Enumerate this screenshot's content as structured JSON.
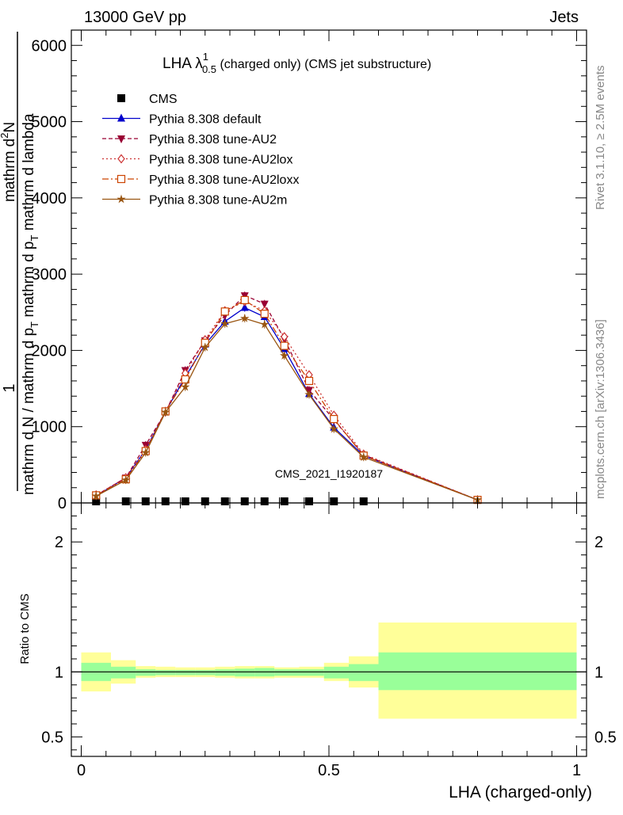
{
  "header": {
    "left": "13000 GeV pp",
    "right": "Jets"
  },
  "plot_title": {
    "main": "LHA λ",
    "sup": "1",
    "sub": "0.5",
    "rest": " (charged only) (CMS jet substructure)"
  },
  "side": {
    "rivet": "Rivet 3.1.10, ≥ 2.5M events",
    "mcplots": "mcplots.cern.ch [arXiv:1306.3436]"
  },
  "watermark": "CMS_2021_I1920187",
  "ylabel_main": {
    "one": "1",
    "numerator": "mathrm d",
    "numerator_sup": "2",
    "numerator_rest": "N",
    "den_main": "mathrm d N / mathrm d p",
    "den_sub": "T",
    "den_rest": " mathrm d p",
    "den_sub2": "T",
    "den_rest2": " mathrm d lambda"
  },
  "ylabel_ratio": "Ratio to CMS",
  "xlabel": "LHA (charged-only)",
  "chart_data": {
    "type": "line",
    "x": [
      0.03,
      0.09,
      0.13,
      0.17,
      0.21,
      0.25,
      0.29,
      0.33,
      0.37,
      0.41,
      0.46,
      0.51,
      0.57,
      0.8
    ],
    "x_edges": [
      0.0,
      0.06,
      0.11,
      0.15,
      0.19,
      0.23,
      0.27,
      0.31,
      0.35,
      0.39,
      0.44,
      0.49,
      0.54,
      0.6,
      1.0
    ],
    "xlim": [
      -0.02,
      1.02
    ],
    "ylim": [
      0,
      6200
    ],
    "yticks": [
      0,
      1000,
      2000,
      3000,
      4000,
      5000,
      6000
    ],
    "yticklabels": [
      "0",
      "1000",
      "2000",
      "3000",
      "4000",
      "5000",
      "6000"
    ],
    "xticks": [
      0,
      0.5,
      1
    ],
    "xticklabels": [
      "0",
      "0.5",
      "1"
    ],
    "legend_position": "top-left",
    "series": [
      {
        "name": "CMS",
        "color": "#000000",
        "marker": "square",
        "dash": "",
        "values": [
          0,
          0,
          0,
          0,
          0,
          0,
          0,
          0,
          0,
          0,
          0,
          0,
          0,
          0
        ]
      },
      {
        "name": "Pythia 8.308 default",
        "color": "#0000cc",
        "marker": "triangle-up",
        "dash": "",
        "values": [
          90,
          330,
          700,
          1200,
          1650,
          2080,
          2380,
          2560,
          2440,
          2020,
          1430,
          990,
          620,
          40
        ]
      },
      {
        "name": "Pythia 8.308 tune-AU2",
        "color": "#990033",
        "marker": "triangle-down",
        "dash": "5,3",
        "values": [
          100,
          330,
          760,
          1190,
          1740,
          2130,
          2460,
          2720,
          2610,
          2150,
          1480,
          1090,
          630,
          40
        ]
      },
      {
        "name": "Pythia 8.308 tune-AU2lox",
        "color": "#cc3333",
        "marker": "diamond-open",
        "dash": "2,3",
        "values": [
          105,
          330,
          700,
          1200,
          1700,
          2140,
          2520,
          2640,
          2520,
          2180,
          1680,
          1150,
          640,
          40
        ]
      },
      {
        "name": "Pythia 8.308 tune-AU2loxx",
        "color": "#cc4400",
        "marker": "square-open",
        "dash": "8,3,2,3",
        "values": [
          100,
          310,
          680,
          1200,
          1620,
          2100,
          2510,
          2660,
          2480,
          2060,
          1600,
          1100,
          620,
          40
        ]
      },
      {
        "name": "Pythia 8.308 tune-AU2m",
        "color": "#995511",
        "marker": "star",
        "dash": "",
        "values": [
          90,
          300,
          660,
          1190,
          1520,
          2040,
          2350,
          2420,
          2340,
          1930,
          1420,
          970,
          600,
          40
        ]
      }
    ],
    "ratio": {
      "ylabel": "Ratio to CMS",
      "ylim": [
        0.35,
        2.3
      ],
      "yticks": [
        0.5,
        1,
        2
      ],
      "yticklabels": [
        "0.5",
        "1",
        "2"
      ],
      "band_inner": [
        [
          0.93,
          1.07
        ],
        [
          0.95,
          1.04
        ],
        [
          0.97,
          1.02
        ],
        [
          0.975,
          1.015
        ],
        [
          0.975,
          1.015
        ],
        [
          0.975,
          1.015
        ],
        [
          0.97,
          1.02
        ],
        [
          0.965,
          1.025
        ],
        [
          0.965,
          1.03
        ],
        [
          0.97,
          1.02
        ],
        [
          0.97,
          1.02
        ],
        [
          0.95,
          1.04
        ],
        [
          0.93,
          1.06
        ],
        [
          0.86,
          1.15
        ]
      ],
      "band_outer": [
        [
          0.85,
          1.15
        ],
        [
          0.91,
          1.09
        ],
        [
          0.955,
          1.045
        ],
        [
          0.96,
          1.04
        ],
        [
          0.96,
          1.035
        ],
        [
          0.96,
          1.035
        ],
        [
          0.955,
          1.04
        ],
        [
          0.95,
          1.045
        ],
        [
          0.95,
          1.045
        ],
        [
          0.955,
          1.035
        ],
        [
          0.955,
          1.04
        ],
        [
          0.93,
          1.07
        ],
        [
          0.88,
          1.12
        ],
        [
          0.64,
          1.38
        ]
      ],
      "band_inner_color": "#99ff99",
      "band_outer_color": "#ffff99"
    }
  }
}
